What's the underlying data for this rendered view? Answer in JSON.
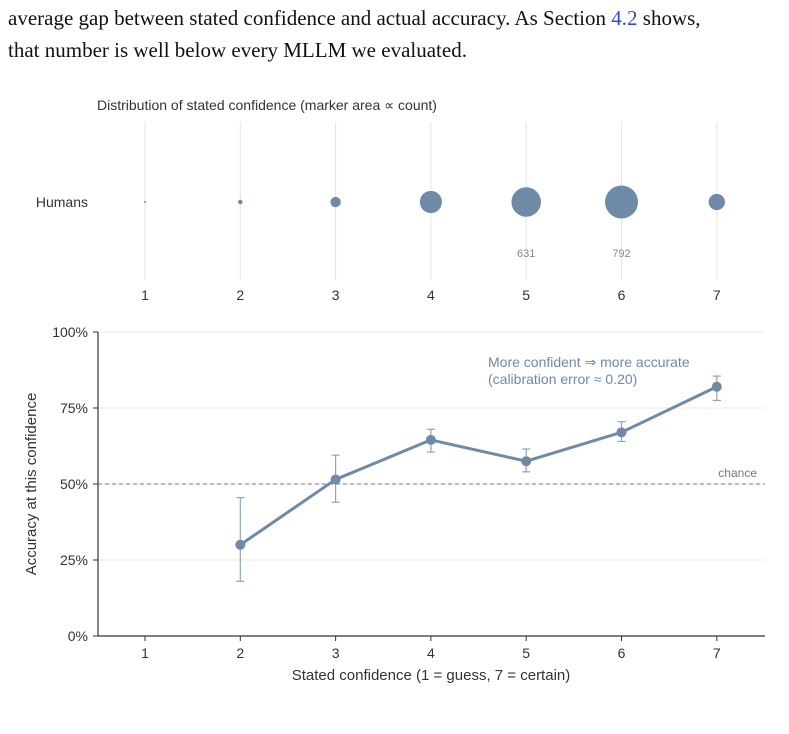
{
  "text": {
    "line1_pre": "average gap between stated confidence and actual accuracy.  As Section ",
    "section_ref": "4.2",
    "line1_post": " shows,",
    "line2": "that number is well below every MLLM we evaluated."
  },
  "colors": {
    "accent": "#6f8aa6",
    "grid": "#e4e4e4",
    "axis": "#333333",
    "text": "#333333",
    "chance": "#777777",
    "link": "#2a4fd6"
  },
  "chart_data": [
    {
      "type": "scatter",
      "title": "Distribution of stated confidence  (marker area ∝ count)",
      "row_label": "Humans",
      "x": [
        1,
        2,
        3,
        4,
        5,
        6,
        7
      ],
      "x_tick_labels": [
        "1",
        "2",
        "3",
        "4",
        "5",
        "6",
        "7"
      ],
      "relative_size": [
        0.002,
        0.018,
        0.098,
        0.45,
        0.8,
        1.0,
        0.245
      ],
      "value_labels": [
        {
          "x": 5,
          "text": "631"
        },
        {
          "x": 6,
          "text": "792"
        }
      ],
      "grid": true
    },
    {
      "type": "line",
      "xlabel": "Stated confidence  (1 = guess, 7 = certain)",
      "ylabel": "Accuracy at this confidence",
      "x_ticks": [
        "1",
        "2",
        "3",
        "4",
        "5",
        "6",
        "7"
      ],
      "xlim": [
        0.5,
        7.5
      ],
      "ylim": [
        0,
        100
      ],
      "y_ticks": [
        0,
        25,
        50,
        75,
        100
      ],
      "y_tick_labels": [
        "0%",
        "25%",
        "50%",
        "75%",
        "100%"
      ],
      "grid": true,
      "series": [
        {
          "x": [
            2,
            3,
            4,
            5,
            6,
            7
          ],
          "y": [
            30,
            51.5,
            64.5,
            57.5,
            67,
            82
          ],
          "err_low": [
            18,
            44,
            60.5,
            54,
            64,
            77.5
          ],
          "err_high": [
            45.5,
            59.5,
            68,
            61.5,
            70.5,
            85.5
          ]
        }
      ],
      "reference_line": {
        "y": 50,
        "label": "chance"
      },
      "annotation": [
        "More confident  ⇒  more accurate",
        "(calibration error  ≈  0.20)"
      ]
    }
  ]
}
